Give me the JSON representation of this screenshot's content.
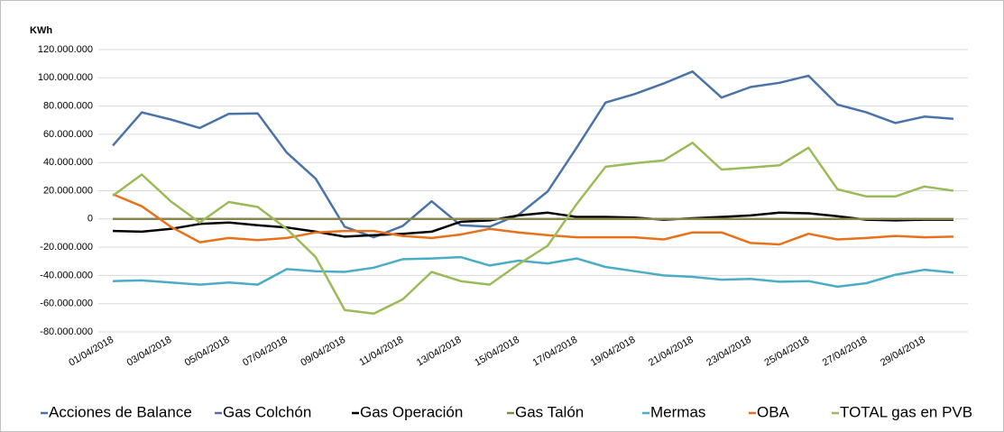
{
  "chart_data": {
    "type": "line",
    "y_label": "KWh",
    "categories": [
      "01/04/2018",
      null,
      "03/04/2018",
      null,
      "05/04/2018",
      null,
      "07/04/2018",
      null,
      "09/04/2018",
      null,
      "11/04/2018",
      null,
      "13/04/2018",
      null,
      "15/04/2018",
      null,
      "17/04/2018",
      null,
      "19/04/2018",
      null,
      "21/04/2018",
      null,
      "23/04/2018",
      null,
      "25/04/2018",
      null,
      "27/04/2018",
      null,
      "29/04/2018",
      null
    ],
    "series": [
      {
        "name": "Acciones de Balance",
        "color": "#4a73a8",
        "values": [
          52000000,
          75500000,
          70500000,
          64500000,
          74500000,
          74800000,
          47000000,
          28500000,
          -5500000,
          -13000000,
          -5000000,
          12500000,
          -4500000,
          -5500000,
          3000000,
          19500000,
          50500000,
          82500000,
          88500000,
          96000000,
          104500000,
          86000000,
          93500000,
          96500000,
          101500000,
          81000000,
          75500000,
          68000000,
          72500000,
          71000000
        ]
      },
      {
        "name": "Gas Colchón",
        "color": "#5a6fa0",
        "values": [
          0,
          0,
          0,
          0,
          0,
          0,
          0,
          0,
          0,
          0,
          0,
          0,
          0,
          0,
          0,
          0,
          0,
          0,
          0,
          0,
          0,
          0,
          0,
          0,
          0,
          0,
          0,
          0,
          0,
          0
        ]
      },
      {
        "name": "Gas Operación",
        "color": "#000000",
        "values": [
          -8500000,
          -9000000,
          -7000000,
          -3500000,
          -2500000,
          -4500000,
          -6000000,
          -9000000,
          -12500000,
          -11500000,
          -10500000,
          -9000000,
          -2000000,
          -1000000,
          2500000,
          4500000,
          1500000,
          1500000,
          1000000,
          -500000,
          500000,
          1500000,
          2500000,
          4500000,
          4000000,
          2000000,
          -500000,
          -1000000,
          -500000,
          -500000
        ]
      },
      {
        "name": "Gas Talón",
        "color": "#8a8550",
        "values": [
          0,
          0,
          0,
          0,
          0,
          0,
          0,
          0,
          0,
          0,
          0,
          0,
          0,
          0,
          0,
          0,
          0,
          0,
          0,
          0,
          0,
          0,
          0,
          0,
          0,
          0,
          0,
          0,
          0,
          0
        ]
      },
      {
        "name": "Mermas",
        "color": "#4bacc6",
        "values": [
          -44000000,
          -43500000,
          -45000000,
          -46500000,
          -45000000,
          -46500000,
          -35500000,
          -37000000,
          -37500000,
          -34500000,
          -28500000,
          -28000000,
          -27000000,
          -33000000,
          -29500000,
          -31500000,
          -28000000,
          -34000000,
          -37000000,
          -40000000,
          -41000000,
          -43000000,
          -42500000,
          -44500000,
          -44000000,
          -48000000,
          -45500000,
          -39500000,
          -36000000,
          -38000000
        ]
      },
      {
        "name": "OBA",
        "color": "#e8711c",
        "values": [
          17500000,
          9000000,
          -5500000,
          -16500000,
          -13500000,
          -15000000,
          -13500000,
          -9500000,
          -8500000,
          -8500000,
          -12000000,
          -13500000,
          -11000000,
          -7000000,
          -9500000,
          -11500000,
          -13000000,
          -13000000,
          -13000000,
          -14500000,
          -9500000,
          -9500000,
          -17000000,
          -18000000,
          -10500000,
          -14500000,
          -13500000,
          -12000000,
          -13000000,
          -12500000
        ]
      },
      {
        "name": "TOTAL gas en PVB",
        "color": "#9bbb59",
        "values": [
          16500000,
          31500000,
          12500000,
          -2500000,
          12000000,
          8500000,
          -7000000,
          -27000000,
          -64500000,
          -67000000,
          -57000000,
          -37500000,
          -44000000,
          -46500000,
          -32000000,
          -19000000,
          10500000,
          37000000,
          39500000,
          41500000,
          54000000,
          35000000,
          36500000,
          38000000,
          50500000,
          21000000,
          16000000,
          16000000,
          23000000,
          20000000
        ]
      }
    ],
    "ylim": [
      -80000000,
      120000000
    ],
    "yticks": [
      {
        "value": -80000000,
        "label": "-80.000.000"
      },
      {
        "value": -60000000,
        "label": "-60.000.000"
      },
      {
        "value": -40000000,
        "label": "-40.000.000"
      },
      {
        "value": -20000000,
        "label": "-20.000.000"
      },
      0,
      {
        "value": 20000000,
        "label": "20.000.000"
      },
      {
        "value": 40000000,
        "label": "40.000.000"
      },
      {
        "value": 60000000,
        "label": "60.000.000"
      },
      {
        "value": 80000000,
        "label": "80.000.000"
      },
      {
        "value": 100000000,
        "label": "100.000.000"
      },
      {
        "value": 120000000,
        "label": "120.000.000"
      }
    ],
    "grid": true,
    "legend": "bottom"
  }
}
